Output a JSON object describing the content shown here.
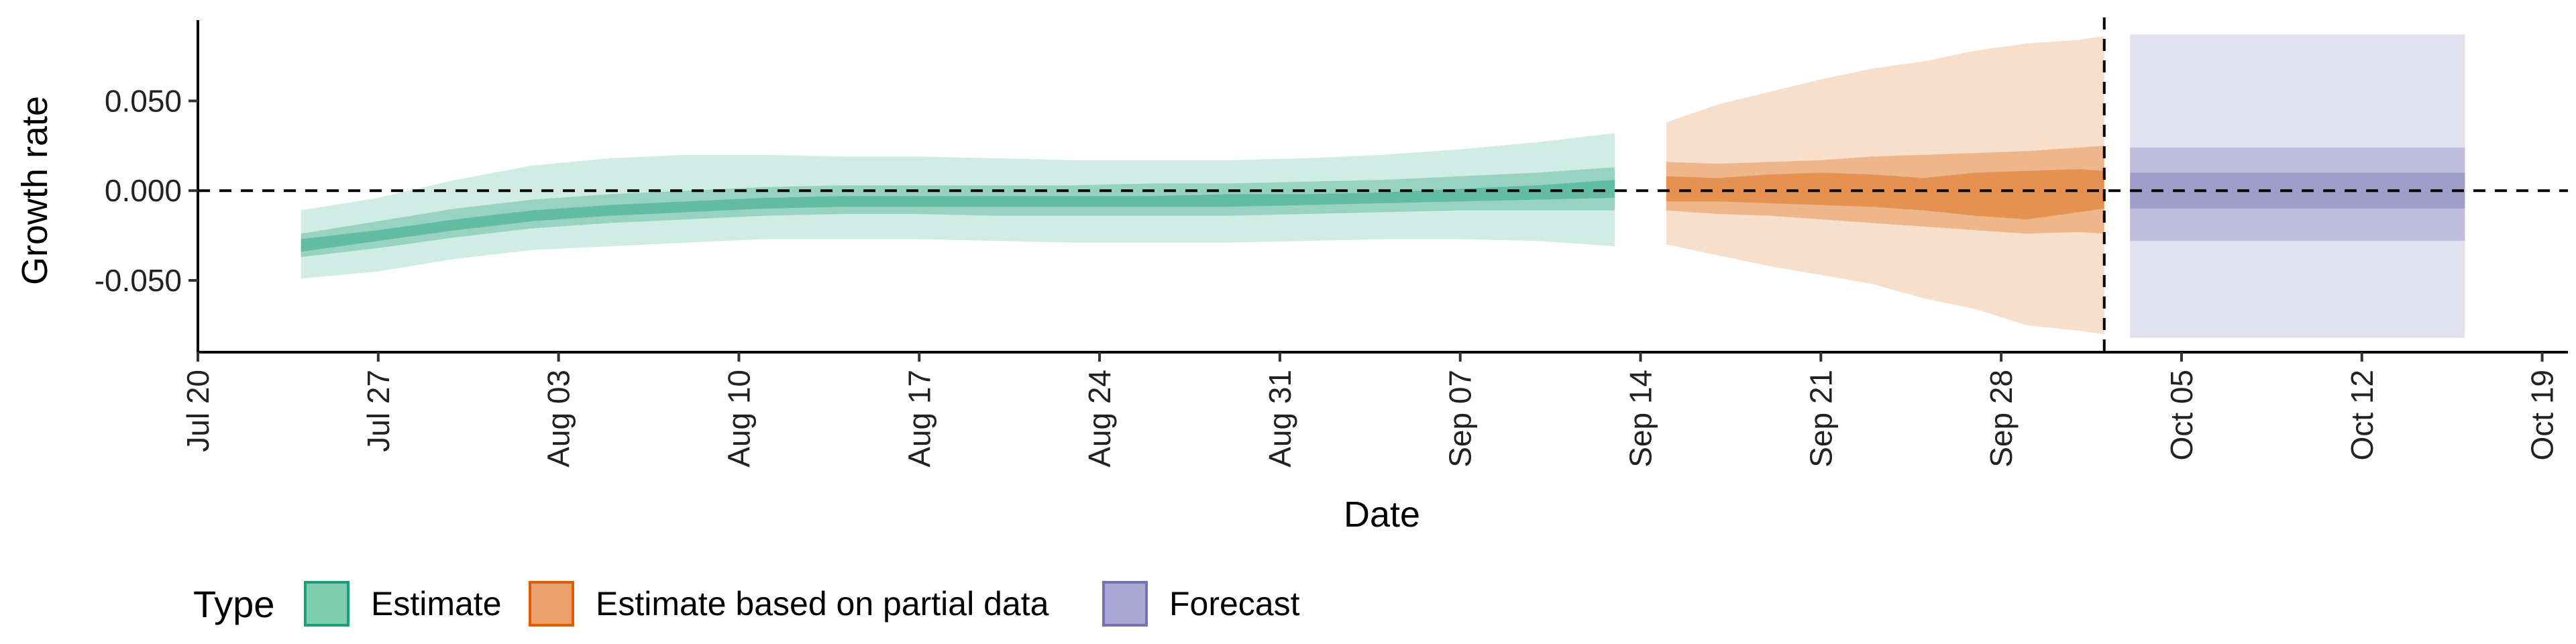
{
  "chart_data": {
    "type": "area",
    "xlabel": "Date",
    "ylabel": "Growth rate",
    "xlim": [
      "2020-07-20",
      "2020-10-20"
    ],
    "ylim": [
      -0.09,
      0.095
    ],
    "x_ticks": [
      "Jul 20",
      "Jul 27",
      "Aug 03",
      "Aug 10",
      "Aug 17",
      "Aug 24",
      "Aug 31",
      "Sep 07",
      "Sep 14",
      "Sep 21",
      "Sep 28",
      "Oct 05",
      "Oct 12",
      "Oct 19"
    ],
    "x_tick_dates": [
      "2020-07-20",
      "2020-07-27",
      "2020-08-03",
      "2020-08-10",
      "2020-08-17",
      "2020-08-24",
      "2020-08-31",
      "2020-09-07",
      "2020-09-14",
      "2020-09-21",
      "2020-09-28",
      "2020-10-05",
      "2020-10-12",
      "2020-10-19"
    ],
    "y_ticks": [
      0.05,
      0.0,
      -0.05
    ],
    "y_tick_labels": [
      "0.050",
      "0.000",
      "-0.050"
    ],
    "hline_y": 0.0,
    "vline_date": "2020-10-02",
    "grid": false,
    "legend": {
      "title": "Type",
      "position": "bottom",
      "items": [
        {
          "label": "Estimate",
          "fill": "#7fcbb0",
          "stroke": "#1b9e77"
        },
        {
          "label": "Estimate based on partial data",
          "fill": "#eba06b",
          "stroke": "#d95f02"
        },
        {
          "label": "Forecast",
          "fill": "#aaa8d2",
          "stroke": "#7570b3"
        }
      ]
    },
    "series": [
      {
        "type": "Estimate",
        "color": "#1b9e77",
        "x": [
          "2020-07-24",
          "2020-07-27",
          "2020-07-30",
          "2020-08-02",
          "2020-08-05",
          "2020-08-08",
          "2020-08-11",
          "2020-08-14",
          "2020-08-17",
          "2020-08-20",
          "2020-08-23",
          "2020-08-26",
          "2020-08-29",
          "2020-09-01",
          "2020-09-04",
          "2020-09-07",
          "2020-09-10",
          "2020-09-13"
        ],
        "lower_90": [
          -0.049,
          -0.045,
          -0.038,
          -0.033,
          -0.031,
          -0.029,
          -0.027,
          -0.027,
          -0.027,
          -0.028,
          -0.029,
          -0.029,
          -0.029,
          -0.028,
          -0.027,
          -0.027,
          -0.028,
          -0.031
        ],
        "upper_90": [
          -0.011,
          -0.004,
          0.006,
          0.014,
          0.018,
          0.02,
          0.02,
          0.019,
          0.019,
          0.018,
          0.017,
          0.017,
          0.017,
          0.018,
          0.02,
          0.023,
          0.027,
          0.032
        ],
        "lower_50": [
          -0.037,
          -0.032,
          -0.026,
          -0.021,
          -0.018,
          -0.016,
          -0.014,
          -0.013,
          -0.013,
          -0.014,
          -0.014,
          -0.014,
          -0.014,
          -0.013,
          -0.012,
          -0.011,
          -0.011,
          -0.011
        ],
        "upper_50": [
          -0.024,
          -0.017,
          -0.01,
          -0.005,
          -0.002,
          0.0,
          0.002,
          0.003,
          0.003,
          0.003,
          0.003,
          0.004,
          0.004,
          0.005,
          0.006,
          0.008,
          0.01,
          0.013
        ],
        "lower_20": [
          -0.034,
          -0.028,
          -0.022,
          -0.017,
          -0.014,
          -0.012,
          -0.01,
          -0.009,
          -0.009,
          -0.009,
          -0.009,
          -0.009,
          -0.009,
          -0.008,
          -0.007,
          -0.006,
          -0.005,
          -0.004
        ],
        "upper_20": [
          -0.027,
          -0.022,
          -0.016,
          -0.011,
          -0.008,
          -0.006,
          -0.004,
          -0.003,
          -0.003,
          -0.003,
          -0.003,
          -0.003,
          -0.002,
          -0.002,
          -0.001,
          0.001,
          0.003,
          0.006
        ]
      },
      {
        "type": "Estimate based on partial data",
        "color": "#d95f02",
        "x": [
          "2020-09-15",
          "2020-09-17",
          "2020-09-19",
          "2020-09-21",
          "2020-09-23",
          "2020-09-25",
          "2020-09-27",
          "2020-09-29",
          "2020-10-01",
          "2020-10-02"
        ],
        "lower_90": [
          -0.03,
          -0.036,
          -0.042,
          -0.047,
          -0.052,
          -0.06,
          -0.066,
          -0.075,
          -0.078,
          -0.08
        ],
        "upper_90": [
          0.038,
          0.048,
          0.055,
          0.062,
          0.068,
          0.072,
          0.078,
          0.082,
          0.084,
          0.086
        ],
        "lower_50": [
          -0.011,
          -0.013,
          -0.014,
          -0.016,
          -0.018,
          -0.02,
          -0.022,
          -0.024,
          -0.023,
          -0.024
        ],
        "upper_50": [
          0.016,
          0.015,
          0.016,
          0.017,
          0.019,
          0.02,
          0.021,
          0.022,
          0.024,
          0.025
        ],
        "lower_20": [
          -0.006,
          -0.006,
          -0.007,
          -0.008,
          -0.009,
          -0.011,
          -0.014,
          -0.016,
          -0.012,
          -0.01
        ],
        "upper_20": [
          0.008,
          0.007,
          0.009,
          0.01,
          0.009,
          0.007,
          0.01,
          0.011,
          0.012,
          0.011
        ]
      },
      {
        "type": "Forecast",
        "color": "#7570b3",
        "x": [
          "2020-10-03",
          "2020-10-16"
        ],
        "lower_90": [
          -0.082,
          -0.082
        ],
        "upper_90": [
          0.087,
          0.087
        ],
        "lower_50": [
          -0.028,
          -0.028
        ],
        "upper_50": [
          0.024,
          0.024
        ],
        "lower_20": [
          -0.01,
          -0.01
        ],
        "upper_20": [
          0.01,
          0.01
        ]
      }
    ]
  }
}
